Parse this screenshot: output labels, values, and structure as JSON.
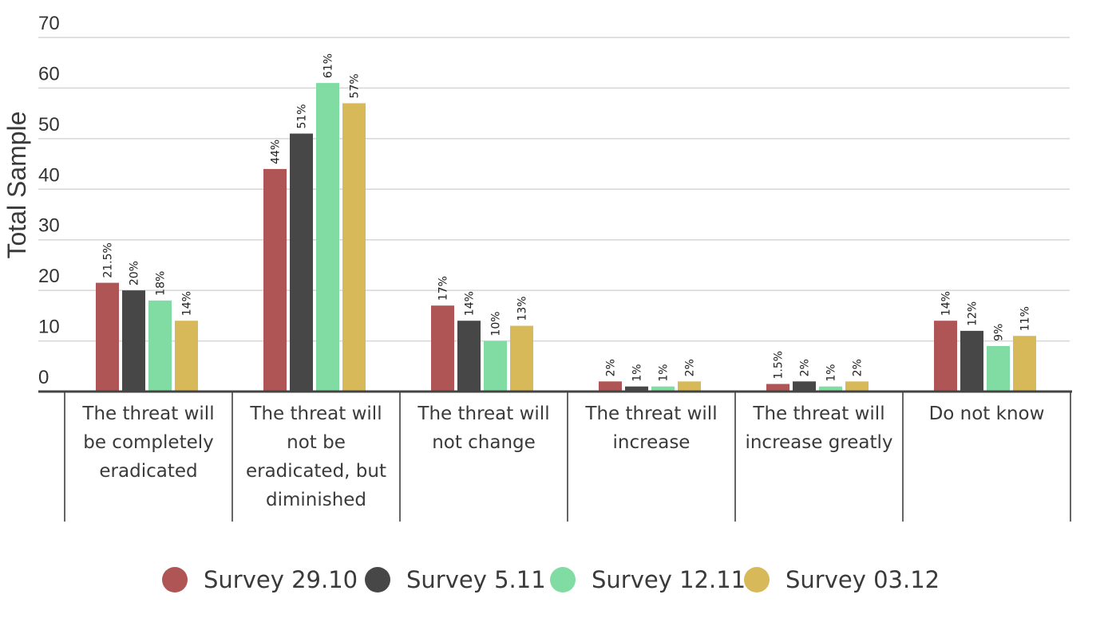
{
  "chart_data": {
    "type": "bar",
    "ylabel": "Total Sample",
    "ylim": [
      0,
      70
    ],
    "yticks": [
      0,
      10,
      20,
      30,
      40,
      50,
      60,
      70
    ],
    "grid": true,
    "legend_position": "bottom",
    "categories": [
      [
        "The threat will",
        "be completely",
        "eradicated"
      ],
      [
        "The threat will",
        "not be",
        "eradicated, but",
        "diminished"
      ],
      [
        "The threat will",
        "not change"
      ],
      [
        "The threat will",
        "increase"
      ],
      [
        "The threat will",
        "increase greatly"
      ],
      [
        "Do not know"
      ]
    ],
    "series": [
      {
        "name": "Survey 29.10",
        "color": "#b05555",
        "values": [
          21.5,
          44,
          17,
          2,
          1.5,
          14
        ],
        "labels": [
          "21.5%",
          "44%",
          "17%",
          "2%",
          "1.5%",
          "14%"
        ]
      },
      {
        "name": "Survey 5.11",
        "color": "#474747",
        "values": [
          20,
          51,
          14,
          1,
          2,
          12
        ],
        "labels": [
          "20%",
          "51%",
          "14%",
          "1%",
          "2%",
          "12%"
        ]
      },
      {
        "name": "Survey 12.11",
        "color": "#80dca2",
        "values": [
          18,
          61,
          10,
          1,
          1,
          9
        ],
        "labels": [
          "18%",
          "61%",
          "10%",
          "1%",
          "1%",
          "9%"
        ]
      },
      {
        "name": "Survey 03.12",
        "color": "#d8b95a",
        "values": [
          14,
          57,
          13,
          2,
          2,
          11
        ],
        "labels": [
          "14%",
          "57%",
          "13%",
          "2%",
          "2%",
          "11%"
        ]
      }
    ]
  }
}
